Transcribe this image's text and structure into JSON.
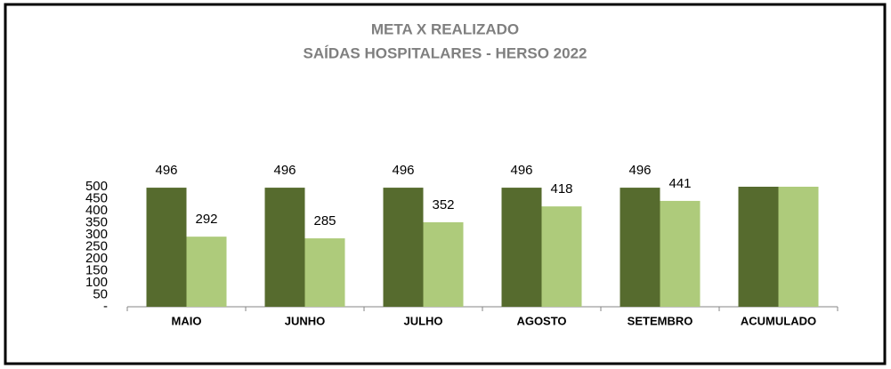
{
  "chart_data": {
    "type": "bar",
    "title": "META X REALIZADO",
    "subtitle": "SAÍDAS HOSPITALARES - HERSO 2022",
    "categories": [
      "MAIO",
      "JUNHO",
      "JULHO",
      "AGOSTO",
      "SETEMBRO",
      "ACUMULADO"
    ],
    "series": [
      {
        "color": "#566b2e",
        "values": [
          496,
          496,
          496,
          496,
          496,
          500
        ],
        "value_labels": [
          "496",
          "496",
          "496",
          "496",
          "496",
          null
        ]
      },
      {
        "color": "#aecb7b",
        "values": [
          292,
          285,
          352,
          418,
          441,
          500
        ],
        "value_labels": [
          "292",
          "285",
          "352",
          "418",
          "441",
          null
        ]
      }
    ],
    "ylim": [
      0,
      500
    ],
    "yticks": [
      {
        "value": 0,
        "label": "-"
      },
      50,
      100,
      150,
      200,
      250,
      300,
      350,
      400,
      450,
      500
    ]
  }
}
